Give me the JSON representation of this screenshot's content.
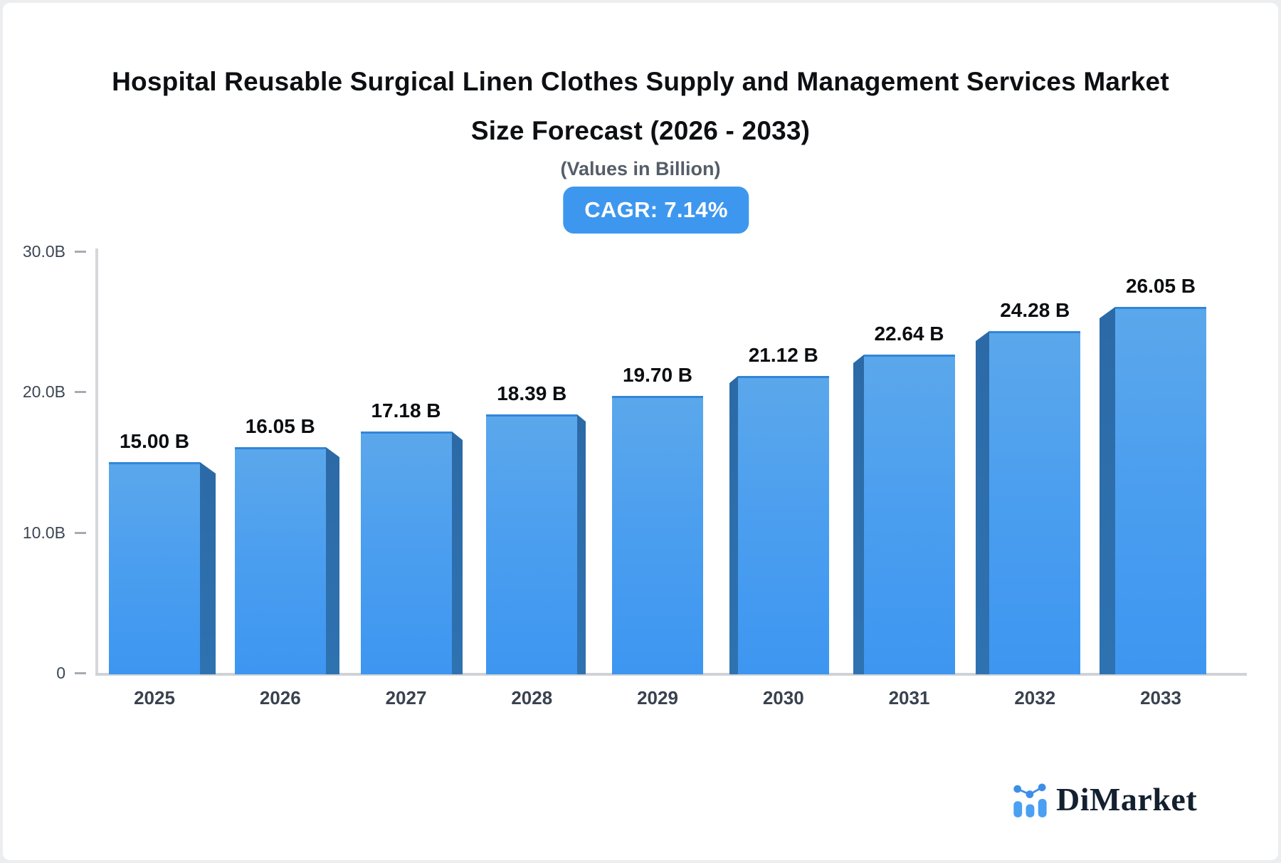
{
  "header": {
    "title_line1": "Hospital Reusable Surgical Linen Clothes Supply and Management Services Market",
    "title_line2": "Size Forecast (2026 - 2033)",
    "subtitle": "(Values in Billion)",
    "cagr_badge": "CAGR: 7.14%"
  },
  "chart_data": {
    "type": "bar",
    "title": "Hospital Reusable Surgical Linen Clothes Supply and Management Services Market Size Forecast (2026 - 2033)",
    "subtitle": "(Values in Billion)",
    "cagr": "7.14%",
    "categories": [
      "2025",
      "2026",
      "2027",
      "2028",
      "2029",
      "2030",
      "2031",
      "2032",
      "2033"
    ],
    "values": [
      15.0,
      16.05,
      17.18,
      18.39,
      19.7,
      21.12,
      22.64,
      24.28,
      26.05
    ],
    "value_labels": [
      "15.00 B",
      "16.05 B",
      "17.18 B",
      "18.39 B",
      "19.70 B",
      "21.12 B",
      "22.64 B",
      "24.28 B",
      "26.05 B"
    ],
    "unit": "Billion",
    "xlabel": "",
    "ylabel": "",
    "ylim": [
      0,
      30
    ],
    "y_ticks": [
      {
        "value": 30,
        "label": "30.0B"
      },
      {
        "value": 20,
        "label": "20.0B"
      },
      {
        "value": 10,
        "label": "10.0B"
      },
      {
        "value": 0,
        "label": "0"
      }
    ],
    "grid": false,
    "legend": "none",
    "style": "pseudo-3d columns, central vanishing point"
  },
  "colors": {
    "bar_front_top": "#5BA7EB",
    "bar_front_mid": "#4C9FEF",
    "bar_front_bottom": "#3D96F0",
    "bar_top_edge": "#3186D8",
    "bar_side": "#2F72B1",
    "bar_side_dark": "#2B6AA6",
    "badge_bg": "#3E97EE",
    "axis_line": "#D5D7DB",
    "tick_text": "#3C4654",
    "value_text": "#0b0d10",
    "logo_blue": "#4AA0F2",
    "logo_navy": "#13202F"
  },
  "logo": {
    "text": "DiMarket",
    "icon": "bar-line-chart-icon"
  }
}
